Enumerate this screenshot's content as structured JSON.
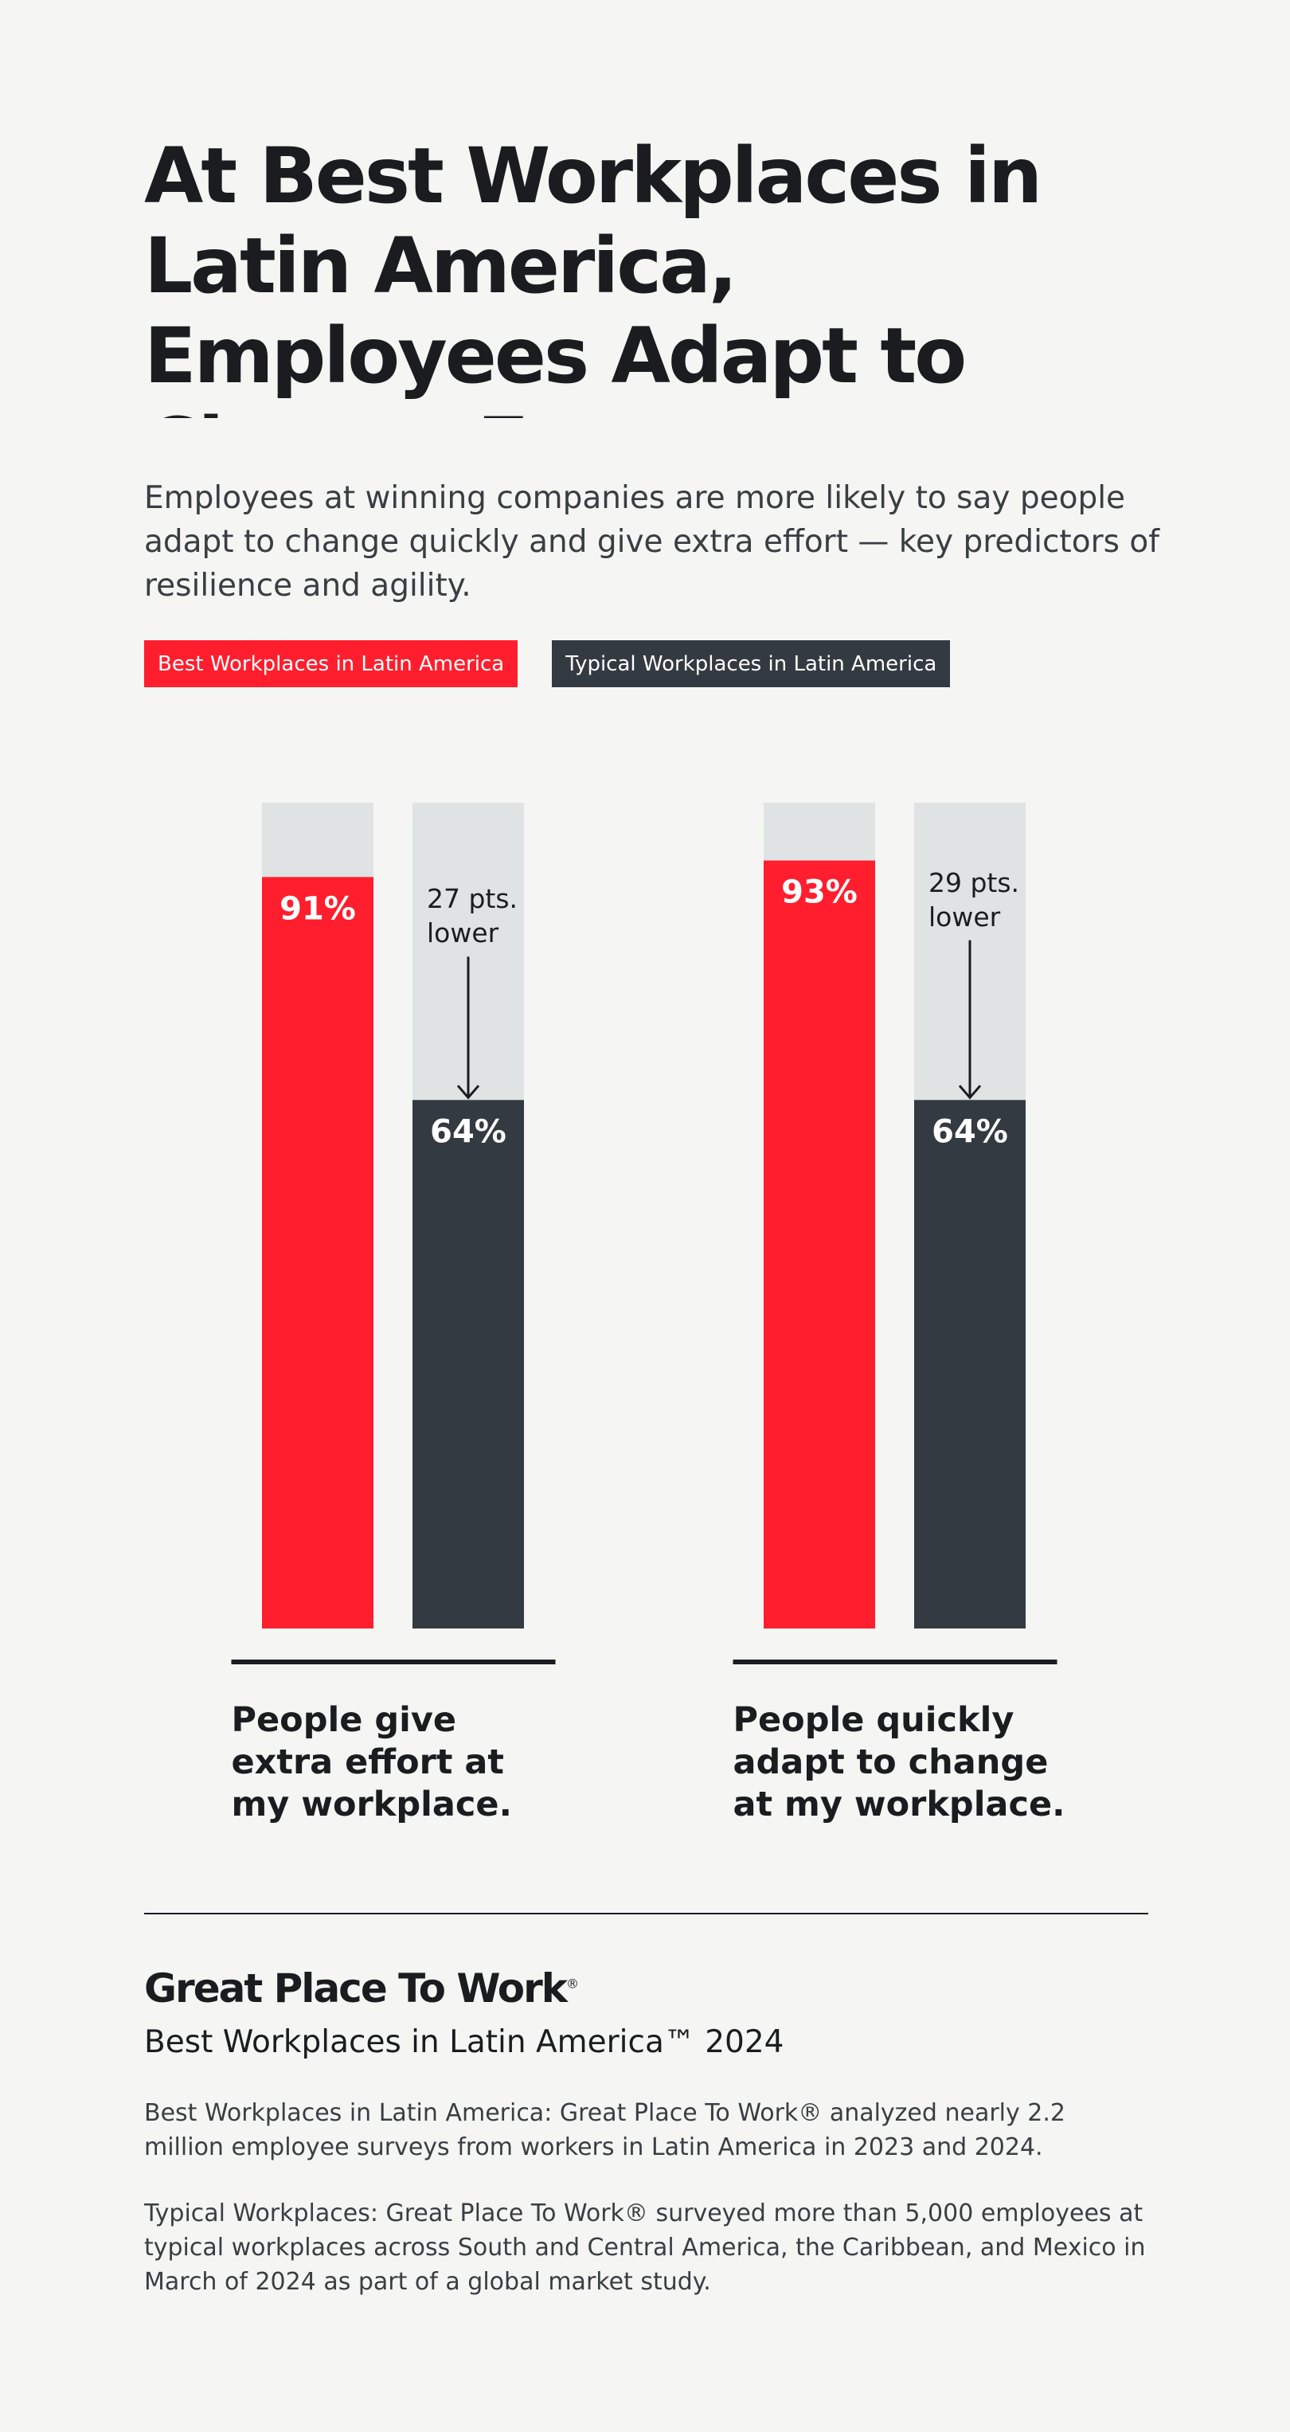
{
  "chart_data": {
    "type": "bar",
    "title": "At Best Workplaces in Latin America, Employees Adapt to Change Faster",
    "subtitle": "Employees at winning companies are more likely to say people adapt to change quickly and give extra effort — key predictors of resilience and agility.",
    "categories": [
      "People give extra effort at my workplace.",
      "People quickly adapt to change at my workplace."
    ],
    "series": [
      {
        "name": "Best Workplaces in Latin America",
        "color": "#ff1e2d",
        "values": [
          91,
          93
        ],
        "value_labels": [
          "91%",
          "93%"
        ]
      },
      {
        "name": "Typical Workplaces in Latin America",
        "color": "#343a41",
        "values": [
          64,
          64
        ],
        "value_labels": [
          "64%",
          "64%"
        ]
      }
    ],
    "annotations": [
      "27 pts. lower",
      "29 pts. lower"
    ],
    "ylim": [
      0,
      100
    ],
    "track_color": "#dfe3e3"
  },
  "footer": {
    "brand": "Great Place To Work",
    "brand_mark": "®",
    "program": "Best Workplaces in Latin America™ 2024",
    "notes": [
      "Best Workplaces in Latin America: Great Place To Work® analyzed nearly 2.2 million employee surveys from workers in Latin America in 2023 and 2024.",
      "Typical Workplaces: Great Place To Work® surveyed more than 5,000 employees at typical workplaces across South and Central America, the Caribbean, and Mexico in March of 2024 as part of a global market study."
    ]
  }
}
